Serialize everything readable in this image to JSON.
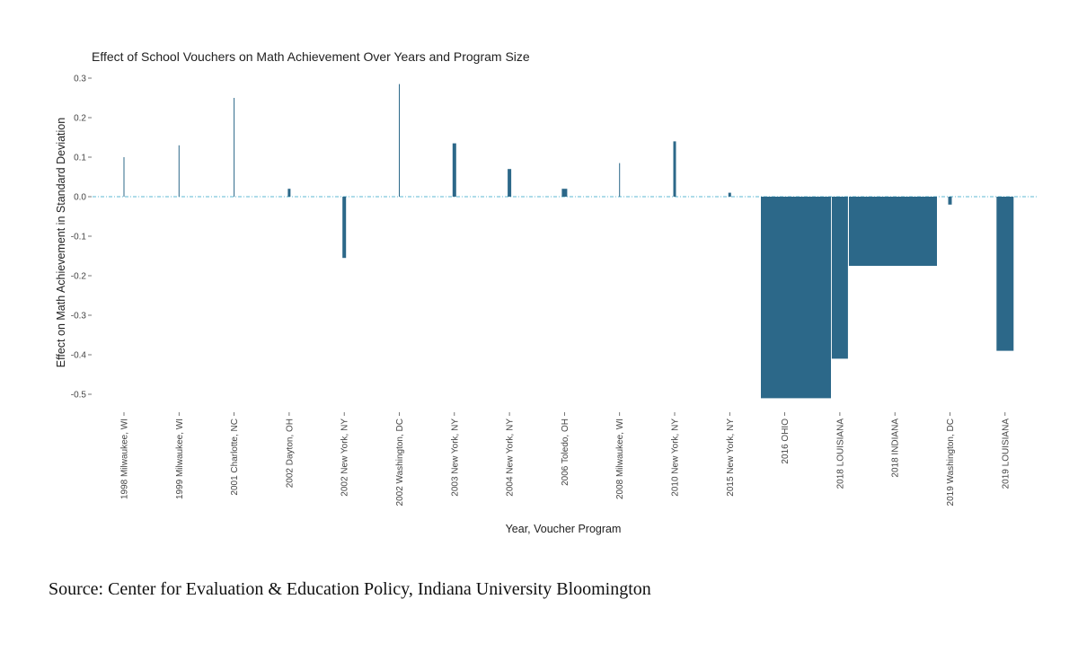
{
  "chart_data": {
    "type": "bar",
    "title": "Effect of School Vouchers on Math Achievement Over Years and Program Size",
    "xlabel": "Year, Voucher Program",
    "ylabel": "Effect on Math Achievement in Standard Deviation",
    "ylim": [
      -0.52,
      0.3
    ],
    "yticks": [
      "0.3",
      "0.2",
      "0.1",
      "0.0",
      "-0.1",
      "-0.2",
      "-0.3",
      "-0.4",
      "-0.5"
    ],
    "grid": false,
    "reference_line": 0.0,
    "bar_color": "#2c6889",
    "reference_line_color": "#7ec8dc",
    "bar_width_encodes": "program size (relative)",
    "categories": [
      "1998 Milwaukee, WI",
      "1999 Milwaukee, WI",
      "2001 Charlotte, NC",
      "2002 Dayton, OH",
      "2002 New York, NY",
      "2002 Washington, DC",
      "2003 New York, NY",
      "2004 New York, NY",
      "2006 Toledo, OH",
      "2008 Milwaukee, WI",
      "2010 New York, NY",
      "2015 New York, NY",
      "2016 OHIO",
      "2018 LOUISIANA",
      "2018 INDIANA",
      "2019 Washington, DC",
      "2019 LOUISIANA"
    ],
    "values": [
      0.1,
      0.13,
      0.25,
      0.02,
      -0.155,
      0.285,
      0.135,
      0.07,
      0.02,
      0.085,
      0.14,
      0.01,
      -0.51,
      -0.41,
      -0.175,
      -0.02,
      -0.39
    ],
    "relative_program_size": [
      1,
      1,
      1,
      3,
      4,
      1,
      4,
      4,
      6,
      1,
      3,
      3,
      78,
      18,
      98,
      4,
      19
    ]
  },
  "source": "Source: Center for Evaluation & Education Policy, Indiana University Bloomington"
}
